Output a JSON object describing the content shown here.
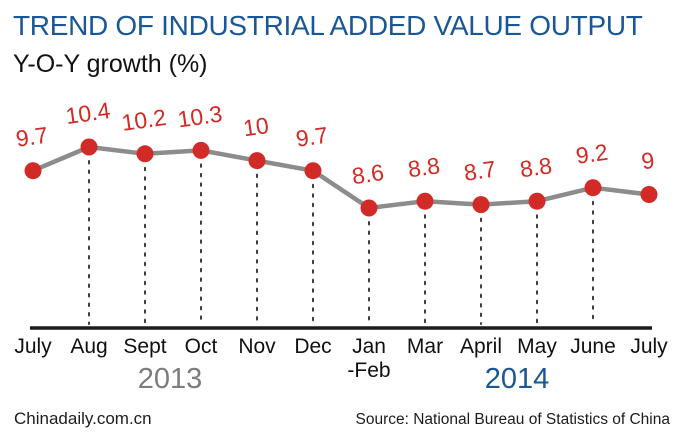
{
  "chart_data": {
    "type": "line",
    "title": "TREND OF INDUSTRIAL ADDED VALUE OUTPUT",
    "subtitle": "Y-O-Y growth (%)",
    "categories": [
      "July",
      "Aug",
      "Sept",
      "Oct",
      "Nov",
      "Dec",
      "Jan\n-Feb",
      "Mar",
      "April",
      "May",
      "June",
      "July"
    ],
    "values": [
      9.7,
      10.4,
      10.2,
      10.3,
      10,
      9.7,
      8.6,
      8.8,
      8.7,
      8.8,
      9.2,
      9
    ],
    "value_labels": [
      "9.7",
      "10.4",
      "10.2",
      "10.3",
      "10",
      "9.7",
      "8.6",
      "8.8",
      "8.7",
      "8.8",
      "9.2",
      "9"
    ],
    "year_groups": [
      {
        "label": "2013"
      },
      {
        "label": "2014"
      }
    ],
    "ylim": [
      8.0,
      11.0
    ],
    "xlabel": "",
    "ylabel": "",
    "legend": "none",
    "grid": "dotted vertical guides from interior data points down to x-axis"
  },
  "footer": {
    "brand": "Chinadaily.com.cn",
    "source": "Source: National Bureau of Statistics of China"
  },
  "colors": {
    "title_blue": "#1a5796",
    "accent_red": "#d22a27",
    "series_line_gray": "#8c8c8c",
    "guide_dot_gray": "#3d3d3d",
    "axis_black": "#1c1c1c",
    "year_gray": "#7d7d7d",
    "text_black": "#111111",
    "background": "#ffffff"
  }
}
